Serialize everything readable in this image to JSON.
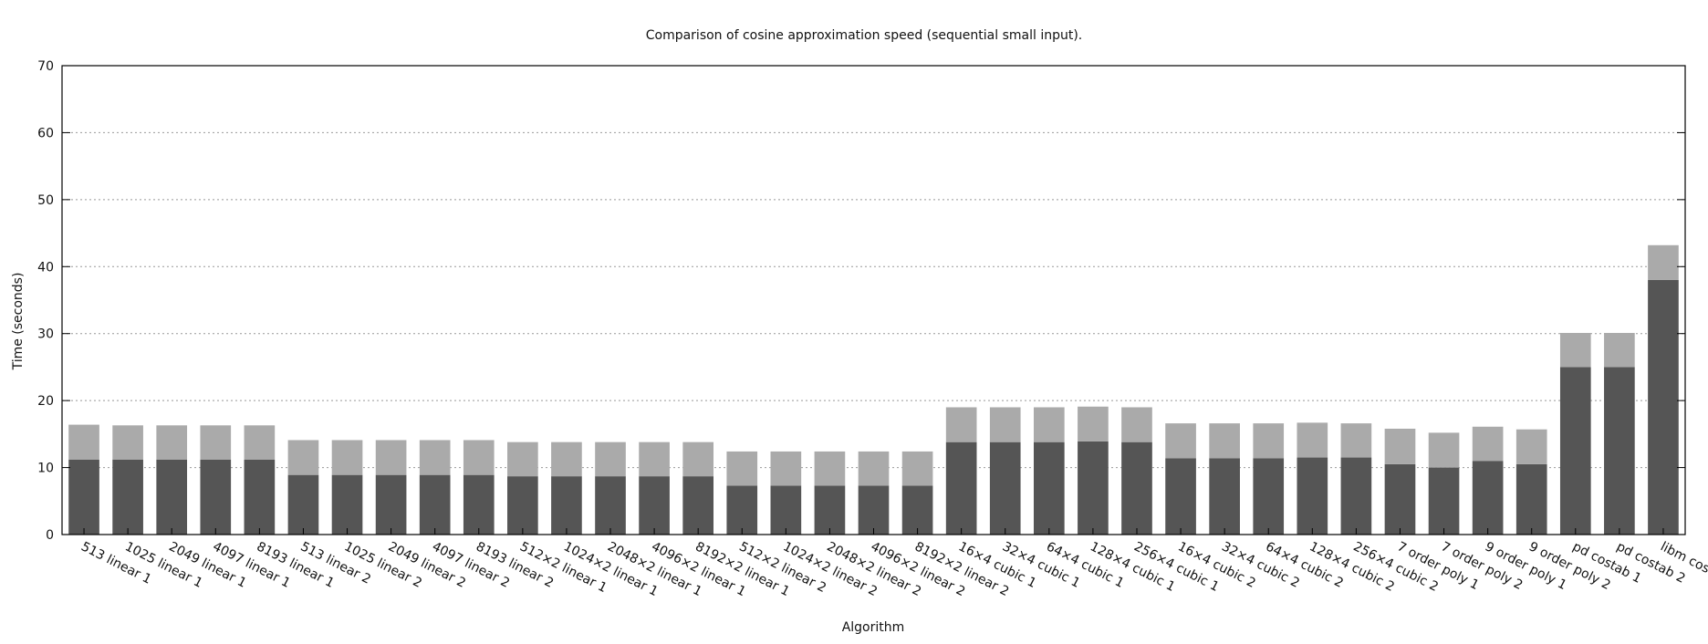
{
  "chart_data": {
    "type": "bar",
    "stacked": true,
    "title": "Comparison of cosine approximation speed (sequential small input).",
    "xlabel": "Algorithm",
    "ylabel": "Time (seconds)",
    "ylim": [
      0,
      70
    ],
    "yticks": [
      0,
      10,
      20,
      30,
      40,
      50,
      60,
      70
    ],
    "grid": true,
    "legend": "none",
    "categories": [
      "513 linear 1",
      "1025 linear 1",
      "2049 linear 1",
      "4097 linear 1",
      "8193 linear 1",
      "513 linear 2",
      "1025 linear 2",
      "2049 linear 2",
      "4097 linear 2",
      "8193 linear 2",
      "512×2 linear 1",
      "1024×2 linear 1",
      "2048×2 linear 1",
      "4096×2 linear 1",
      "8192×2 linear 1",
      "512×2 linear 2",
      "1024×2 linear 2",
      "2048×2 linear 2",
      "4096×2 linear 2",
      "8192×2 linear 2",
      "16×4 cubic 1",
      "32×4 cubic 1",
      "64×4 cubic 1",
      "128×4 cubic 1",
      "256×4 cubic 1",
      "16×4 cubic 2",
      "32×4 cubic 2",
      "64×4 cubic 2",
      "128×4 cubic 2",
      "256×4 cubic 2",
      "7 order poly 1",
      "7 order poly 2",
      "9 order poly 1",
      "9 order poly 2",
      "pd costab 1",
      "pd costab 2",
      "libm cosf()"
    ],
    "series": [
      {
        "color": "#555555",
        "values": [
          11.2,
          11.2,
          11.2,
          11.2,
          11.2,
          8.9,
          8.9,
          8.9,
          8.9,
          8.9,
          8.7,
          8.7,
          8.7,
          8.7,
          8.7,
          7.3,
          7.3,
          7.3,
          7.3,
          7.3,
          13.8,
          13.8,
          13.8,
          13.9,
          13.8,
          11.4,
          11.4,
          11.4,
          11.5,
          11.5,
          10.5,
          10.0,
          11.0,
          10.5,
          25.0,
          25.0,
          38.0
        ]
      },
      {
        "color": "#aaaaaa",
        "values": [
          5.2,
          5.1,
          5.1,
          5.1,
          5.1,
          5.2,
          5.2,
          5.2,
          5.2,
          5.2,
          5.1,
          5.1,
          5.1,
          5.1,
          5.1,
          5.1,
          5.1,
          5.1,
          5.1,
          5.1,
          5.2,
          5.2,
          5.2,
          5.2,
          5.2,
          5.2,
          5.2,
          5.2,
          5.2,
          5.1,
          5.3,
          5.2,
          5.1,
          5.2,
          5.1,
          5.1,
          5.2
        ]
      }
    ]
  }
}
